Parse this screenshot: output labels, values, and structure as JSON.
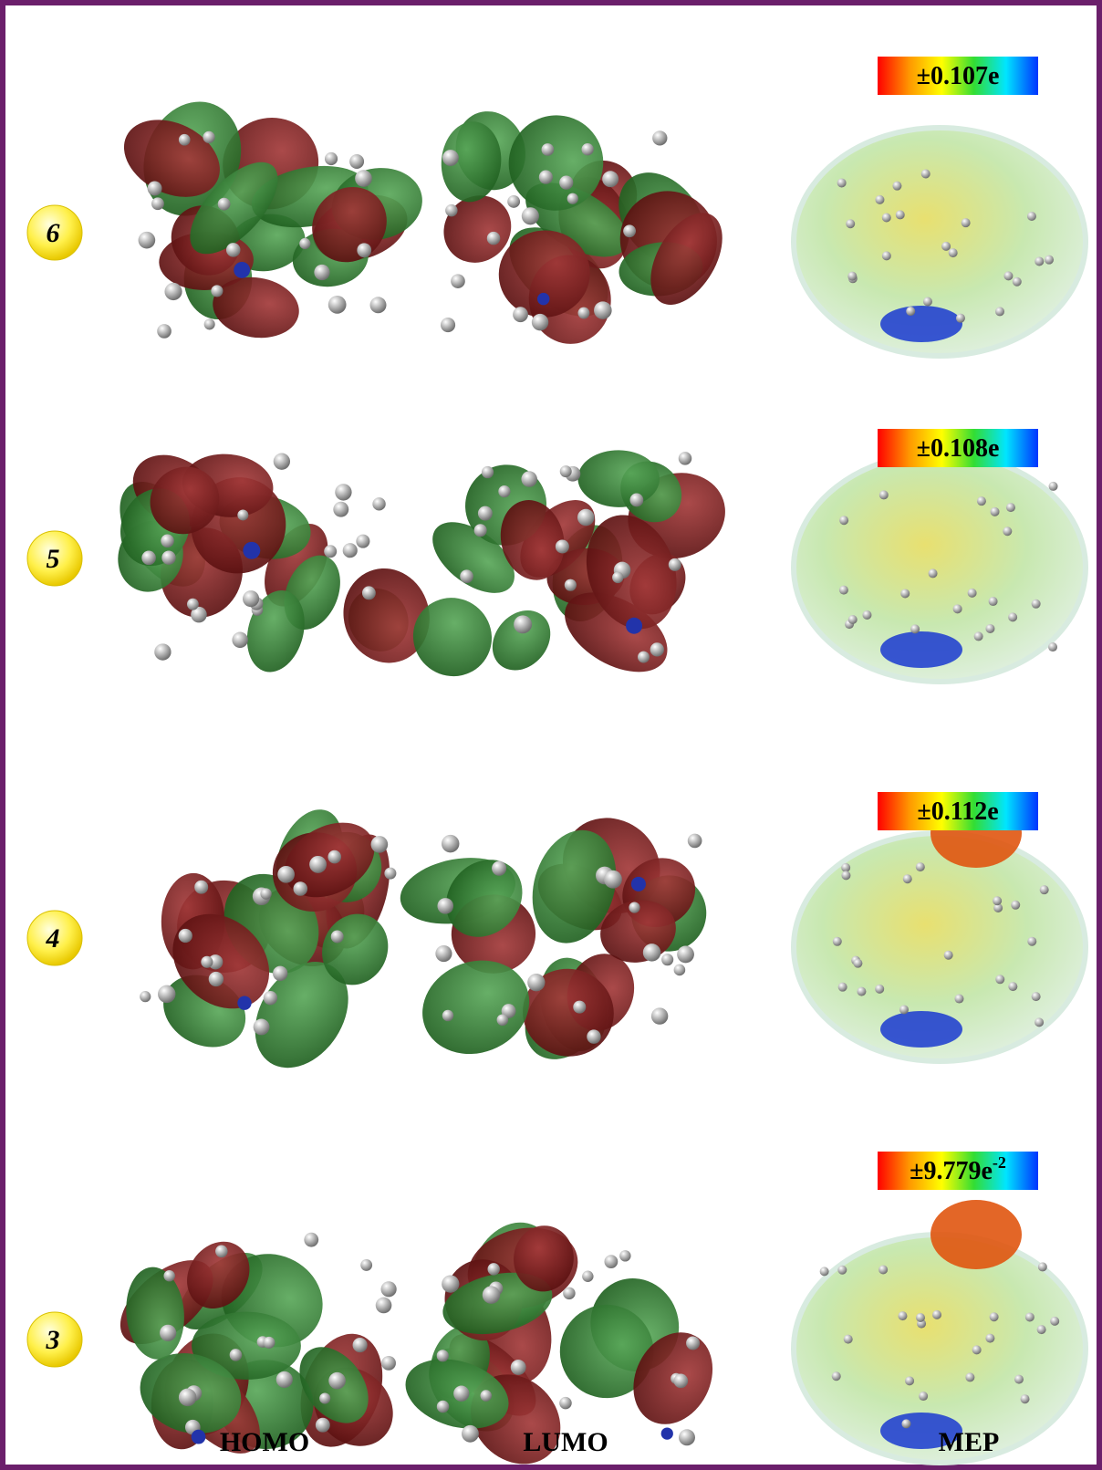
{
  "rows": [
    {
      "label": "6",
      "mep_range": "±0.107e"
    },
    {
      "label": "5",
      "mep_range": "±0.108e"
    },
    {
      "label": "4",
      "mep_range": "±0.112e"
    },
    {
      "label": "3",
      "mep_range": "±9.779e",
      "mep_range_sup": "-2"
    }
  ],
  "columns": [
    "HOMO",
    "LUMO",
    "MEP"
  ]
}
